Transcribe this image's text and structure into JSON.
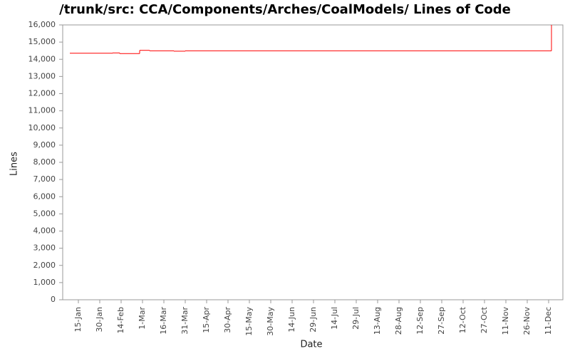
{
  "chart_data": {
    "type": "step",
    "title": "/trunk/src: CCA/Components/Arches/CoalModels/ Lines of Code",
    "x_label": "Date",
    "y_label": "Lines",
    "x": [
      "01-09",
      "02-08",
      "02-13",
      "02-27",
      "03-06",
      "03-23",
      "03-31",
      "12-13"
    ],
    "values": [
      14350,
      14370,
      14330,
      14520,
      14490,
      14470,
      14490,
      16000
    ],
    "color": "#ff0000",
    "xlim": [
      "01-04",
      "12-21"
    ],
    "xticks": [
      {
        "value": "01-15",
        "label": "15-Jan"
      },
      {
        "value": "01-30",
        "label": "30-Jan"
      },
      {
        "value": "02-14",
        "label": "14-Feb"
      },
      {
        "value": "03-01",
        "label": "1-Mar"
      },
      {
        "value": "03-16",
        "label": "16-Mar"
      },
      {
        "value": "03-31",
        "label": "31-Mar"
      },
      {
        "value": "04-15",
        "label": "15-Apr"
      },
      {
        "value": "04-30",
        "label": "30-Apr"
      },
      {
        "value": "05-15",
        "label": "15-May"
      },
      {
        "value": "05-30",
        "label": "30-May"
      },
      {
        "value": "06-14",
        "label": "14-Jun"
      },
      {
        "value": "06-29",
        "label": "29-Jun"
      },
      {
        "value": "07-14",
        "label": "14-Jul"
      },
      {
        "value": "07-29",
        "label": "29-Jul"
      },
      {
        "value": "08-13",
        "label": "13-Aug"
      },
      {
        "value": "08-28",
        "label": "28-Aug"
      },
      {
        "value": "09-12",
        "label": "12-Sep"
      },
      {
        "value": "09-27",
        "label": "27-Sep"
      },
      {
        "value": "10-12",
        "label": "12-Oct"
      },
      {
        "value": "10-27",
        "label": "27-Oct"
      },
      {
        "value": "11-11",
        "label": "11-Nov"
      },
      {
        "value": "11-26",
        "label": "26-Nov"
      },
      {
        "value": "12-11",
        "label": "11-Dec"
      }
    ],
    "ylim": [
      0,
      16000
    ],
    "yticks": [
      0,
      {
        "value": 1000,
        "label": "1,000"
      },
      {
        "value": 2000,
        "label": "2,000"
      },
      {
        "value": 3000,
        "label": "3,000"
      },
      {
        "value": 4000,
        "label": "4,000"
      },
      {
        "value": 5000,
        "label": "5,000"
      },
      {
        "value": 6000,
        "label": "6,000"
      },
      {
        "value": 7000,
        "label": "7,000"
      },
      {
        "value": 8000,
        "label": "8,000"
      },
      {
        "value": 9000,
        "label": "9,000"
      },
      {
        "value": 10000,
        "label": "10,000"
      },
      {
        "value": 11000,
        "label": "11,000"
      },
      {
        "value": 12000,
        "label": "12,000"
      },
      {
        "value": 13000,
        "label": "13,000"
      },
      {
        "value": 14000,
        "label": "14,000"
      },
      {
        "value": 15000,
        "label": "15,000"
      },
      {
        "value": 16000,
        "label": "16,000"
      }
    ],
    "grid": false
  }
}
